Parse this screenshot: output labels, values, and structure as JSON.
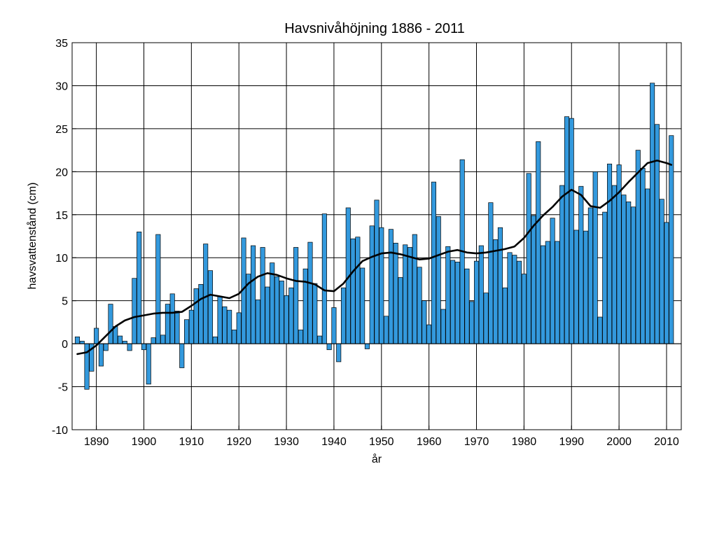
{
  "chart_data": {
    "type": "bar",
    "title": "Havsnivåhöjning 1886 - 2011",
    "xlabel": "år",
    "ylabel": "havsvattenstånd (cm)",
    "xlim": [
      1884.9,
      2013.1
    ],
    "ylim": [
      -10,
      35
    ],
    "grid": true,
    "bar_color": "#3399dd",
    "trend_color": "#000000",
    "x_ticks": [
      1890,
      1900,
      1910,
      1920,
      1930,
      1940,
      1950,
      1960,
      1970,
      1980,
      1990,
      2000,
      2010
    ],
    "y_ticks": [
      -10,
      -5,
      0,
      5,
      10,
      15,
      20,
      25,
      30,
      35
    ],
    "series": [
      {
        "type": "bar",
        "x": [
          1886,
          1887,
          1888,
          1889,
          1890,
          1891,
          1892,
          1893,
          1894,
          1895,
          1896,
          1897,
          1898,
          1899,
          1900,
          1901,
          1902,
          1903,
          1904,
          1905,
          1906,
          1907,
          1908,
          1909,
          1910,
          1911,
          1912,
          1913,
          1914,
          1915,
          1916,
          1917,
          1918,
          1919,
          1920,
          1921,
          1922,
          1923,
          1924,
          1925,
          1926,
          1927,
          1928,
          1929,
          1930,
          1931,
          1932,
          1933,
          1934,
          1935,
          1936,
          1937,
          1938,
          1939,
          1940,
          1941,
          1942,
          1943,
          1944,
          1945,
          1946,
          1947,
          1948,
          1949,
          1950,
          1951,
          1952,
          1953,
          1954,
          1955,
          1956,
          1957,
          1958,
          1959,
          1960,
          1961,
          1962,
          1963,
          1964,
          1965,
          1966,
          1967,
          1968,
          1969,
          1970,
          1971,
          1972,
          1973,
          1974,
          1975,
          1976,
          1977,
          1978,
          1979,
          1980,
          1981,
          1982,
          1983,
          1984,
          1985,
          1986,
          1987,
          1988,
          1989,
          1990,
          1991,
          1992,
          1993,
          1994,
          1995,
          1996,
          1997,
          1998,
          1999,
          2000,
          2001,
          2002,
          2003,
          2004,
          2005,
          2006,
          2007,
          2008,
          2009,
          2010,
          2011
        ],
        "values": [
          0.8,
          0.3,
          -5.3,
          -3.2,
          1.8,
          -2.6,
          -0.8,
          4.6,
          2.0,
          0.9,
          0.3,
          -0.8,
          7.6,
          13.0,
          -0.7,
          -4.7,
          0.7,
          12.7,
          1.0,
          4.6,
          5.8,
          3.8,
          -2.8,
          2.8,
          3.9,
          6.4,
          6.9,
          11.6,
          8.5,
          0.8,
          5.5,
          4.3,
          3.9,
          1.6,
          3.6,
          12.3,
          8.1,
          11.4,
          5.1,
          11.2,
          6.6,
          9.4,
          7.8,
          7.3,
          5.6,
          6.5,
          11.2,
          1.6,
          8.7,
          11.8,
          7.0,
          0.9,
          15.1,
          -0.7,
          4.2,
          -2.1,
          6.5,
          15.8,
          12.2,
          12.4,
          8.8,
          -0.6,
          13.7,
          16.7,
          13.5,
          3.2,
          13.3,
          11.7,
          7.7,
          11.5,
          11.2,
          12.7,
          8.9,
          5.0,
          2.2,
          18.8,
          14.8,
          4.0,
          11.3,
          9.7,
          9.5,
          21.4,
          8.7,
          4.9,
          9.6,
          11.4,
          5.9,
          16.4,
          12.1,
          13.5,
          6.5,
          10.6,
          10.3,
          9.6,
          8.1,
          19.8,
          14.9,
          23.5,
          11.4,
          11.9,
          14.6,
          11.9,
          18.4,
          26.4,
          26.2,
          13.2,
          18.3,
          13.1,
          15.8,
          20.0,
          3.1,
          15.3,
          20.9,
          18.4,
          20.8,
          17.3,
          16.5,
          15.9,
          22.5,
          20.4,
          18.0,
          30.3,
          25.5,
          16.8,
          14.1,
          24.2
        ]
      },
      {
        "type": "line",
        "x": [
          1886,
          1888,
          1890,
          1892,
          1894,
          1896,
          1898,
          1900,
          1902,
          1904,
          1906,
          1908,
          1910,
          1912,
          1914,
          1916,
          1918,
          1920,
          1922,
          1924,
          1926,
          1928,
          1930,
          1932,
          1934,
          1936,
          1938,
          1940,
          1942,
          1944,
          1946,
          1948,
          1950,
          1952,
          1954,
          1956,
          1958,
          1960,
          1962,
          1964,
          1966,
          1968,
          1970,
          1972,
          1974,
          1976,
          1978,
          1980,
          1982,
          1984,
          1986,
          1988,
          1990,
          1992,
          1994,
          1996,
          1998,
          2000,
          2002,
          2004,
          2006,
          2008,
          2010,
          2011
        ],
        "values": [
          -1.2,
          -1.0,
          -0.2,
          0.9,
          2.0,
          2.7,
          3.1,
          3.3,
          3.5,
          3.6,
          3.6,
          3.7,
          4.4,
          5.2,
          5.7,
          5.5,
          5.3,
          5.8,
          7.0,
          7.8,
          8.2,
          8.0,
          7.6,
          7.3,
          7.2,
          6.9,
          6.2,
          6.1,
          7.0,
          8.4,
          9.6,
          10.1,
          10.5,
          10.6,
          10.4,
          10.1,
          9.8,
          9.9,
          10.3,
          10.7,
          10.9,
          10.6,
          10.5,
          10.6,
          10.8,
          11.0,
          11.3,
          12.3,
          13.7,
          14.9,
          15.9,
          17.1,
          17.9,
          17.3,
          16.0,
          15.8,
          16.6,
          17.6,
          18.8,
          19.9,
          21.0,
          21.3,
          21.0,
          20.8
        ]
      }
    ]
  }
}
